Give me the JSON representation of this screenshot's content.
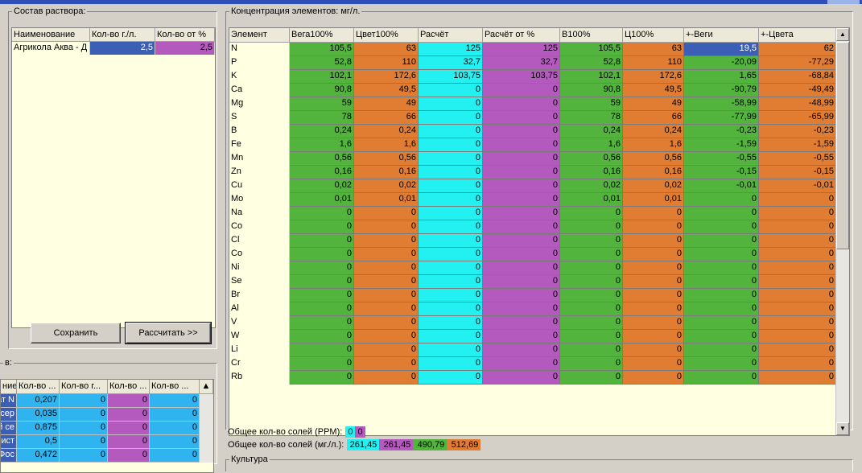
{
  "solution": {
    "legend": "Состав раствора:",
    "columns": [
      "Наименование",
      "Кол-во г./л.",
      "Кол-во от %"
    ],
    "rows": [
      {
        "name": "Агрикола Аква - Д",
        "gl": "2,5",
        "pct": "2,5"
      }
    ],
    "save_label": "Сохранить",
    "calc_label": "Рассчитать >>"
  },
  "salts": {
    "legend": "в:",
    "columns": [
      "ние",
      "Кол-во ...",
      "Кол-во г...",
      "Кол-во ...",
      "Кол-во ..."
    ],
    "rows": [
      {
        "name": "ат N",
        "c1": "0,207",
        "c2": "0",
        "c3": "0",
        "c4": "0"
      },
      {
        "name": "й сер",
        "c1": "0,035",
        "c2": "0",
        "c3": "0",
        "c4": "0"
      },
      {
        "name": "й се",
        "c1": "0,875",
        "c2": "0",
        "c3": "0",
        "c4": "0"
      },
      {
        "name": "ист -",
        "c1": "0,5",
        "c2": "0",
        "c3": "0",
        "c4": "0"
      },
      {
        "name": "Фос",
        "c1": "0,472",
        "c2": "0",
        "c3": "0",
        "c4": "0"
      }
    ]
  },
  "concentration": {
    "legend": "Концентрация элементов: мг/л.",
    "columns": [
      "Элемент",
      "Вега100%",
      "Цвет100%",
      "Расчёт",
      "Расчёт от %",
      "В100%",
      "Ц100%",
      "+-Веги",
      "+-Цвета"
    ],
    "rows": [
      [
        "N",
        "105,5",
        "63",
        "125",
        "125",
        "105,5",
        "63",
        "19,5",
        "62"
      ],
      [
        "P",
        "52,8",
        "110",
        "32,7",
        "32,7",
        "52,8",
        "110",
        "-20,09",
        "-77,29"
      ],
      [
        "K",
        "102,1",
        "172,6",
        "103,75",
        "103,75",
        "102,1",
        "172,6",
        "1,65",
        "-68,84"
      ],
      [
        "Ca",
        "90,8",
        "49,5",
        "0",
        "0",
        "90,8",
        "49,5",
        "-90,79",
        "-49,49"
      ],
      [
        "Mg",
        "59",
        "49",
        "0",
        "0",
        "59",
        "49",
        "-58,99",
        "-48,99"
      ],
      [
        "S",
        "78",
        "66",
        "0",
        "0",
        "78",
        "66",
        "-77,99",
        "-65,99"
      ],
      [
        "B",
        "0,24",
        "0,24",
        "0",
        "0",
        "0,24",
        "0,24",
        "-0,23",
        "-0,23"
      ],
      [
        "Fe",
        "1,6",
        "1,6",
        "0",
        "0",
        "1,6",
        "1,6",
        "-1,59",
        "-1,59"
      ],
      [
        "Mn",
        "0,56",
        "0,56",
        "0",
        "0",
        "0,56",
        "0,56",
        "-0,55",
        "-0,55"
      ],
      [
        "Zn",
        "0,16",
        "0,16",
        "0",
        "0",
        "0,16",
        "0,16",
        "-0,15",
        "-0,15"
      ],
      [
        "Cu",
        "0,02",
        "0,02",
        "0",
        "0",
        "0,02",
        "0,02",
        "-0,01",
        "-0,01"
      ],
      [
        "Mo",
        "0,01",
        "0,01",
        "0",
        "0",
        "0,01",
        "0,01",
        "0",
        "0"
      ],
      [
        "Na",
        "0",
        "0",
        "0",
        "0",
        "0",
        "0",
        "0",
        "0"
      ],
      [
        "Co",
        "0",
        "0",
        "0",
        "0",
        "0",
        "0",
        "0",
        "0"
      ],
      [
        "Cl",
        "0",
        "0",
        "0",
        "0",
        "0",
        "0",
        "0",
        "0"
      ],
      [
        "Co",
        "0",
        "0",
        "0",
        "0",
        "0",
        "0",
        "0",
        "0"
      ],
      [
        "Ni",
        "0",
        "0",
        "0",
        "0",
        "0",
        "0",
        "0",
        "0"
      ],
      [
        "Se",
        "0",
        "0",
        "0",
        "0",
        "0",
        "0",
        "0",
        "0"
      ],
      [
        "Br",
        "0",
        "0",
        "0",
        "0",
        "0",
        "0",
        "0",
        "0"
      ],
      [
        "Al",
        "0",
        "0",
        "0",
        "0",
        "0",
        "0",
        "0",
        "0"
      ],
      [
        "V",
        "0",
        "0",
        "0",
        "0",
        "0",
        "0",
        "0",
        "0"
      ],
      [
        "W",
        "0",
        "0",
        "0",
        "0",
        "0",
        "0",
        "0",
        "0"
      ],
      [
        "Li",
        "0",
        "0",
        "0",
        "0",
        "0",
        "0",
        "0",
        "0"
      ],
      [
        "Cr",
        "0",
        "0",
        "0",
        "0",
        "0",
        "0",
        "0",
        "0"
      ],
      [
        "Rb",
        "0",
        "0",
        "0",
        "0",
        "0",
        "0",
        "0",
        "0"
      ]
    ]
  },
  "totals": {
    "ppm_label": "Общее кол-во солей (PPM):",
    "ppm_values": [
      "0",
      "0"
    ],
    "mgl_label": "Общее кол-во солей (мг./л.):",
    "mgl_values": [
      "261,45",
      "261,45",
      "490,79",
      "512,69"
    ]
  },
  "culture": {
    "legend": "Культура"
  },
  "colors": {
    "green": "#52b43c",
    "orange": "#e07d32",
    "cyan": "#23f0f0",
    "violet": "#b45abe",
    "blue": "#3b5fb5",
    "sky": "#2fb4ef",
    "grid_bg": "#ffffe1"
  },
  "icons": {
    "scroll_up": "scroll-up-arrow-icon",
    "scroll_down": "scroll-down-arrow-icon"
  }
}
